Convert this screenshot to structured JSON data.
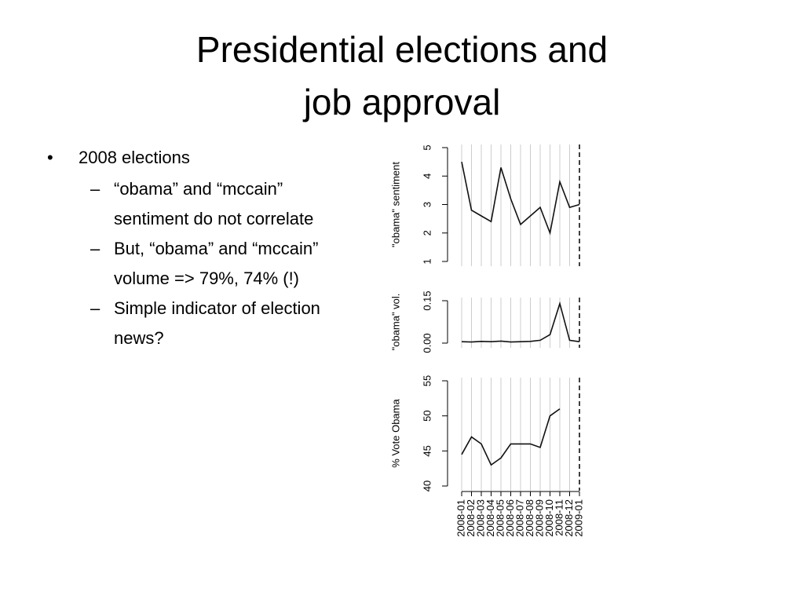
{
  "slide": {
    "title": [
      "Presidential elections and",
      "job approval"
    ],
    "bullets": [
      {
        "level": 1,
        "text": "2008 elections"
      },
      {
        "level": 2,
        "lines": [
          "“obama” and “mccain”",
          "sentiment do not correlate"
        ]
      },
      {
        "level": 2,
        "lines": [
          "But, “obama” and “mccain”",
          "volume => 79%, 74% (!)"
        ]
      },
      {
        "level": 2,
        "lines": [
          "Simple indicator of election",
          "news?"
        ]
      }
    ]
  },
  "chart_data": [
    {
      "type": "line",
      "y_label": "\"obama\" sentiment",
      "color": "#111111",
      "grid": true,
      "vline": "2009-01",
      "categories": [
        "2008-01",
        "2008-02",
        "2008-03",
        "2008-04",
        "2008-05",
        "2008-06",
        "2008-07",
        "2008-08",
        "2008-09",
        "2008-10",
        "2008-11",
        "2008-12",
        "2009-01"
      ],
      "values": [
        4.5,
        2.8,
        2.6,
        2.4,
        4.3,
        3.2,
        2.3,
        2.6,
        2.9,
        2.0,
        3.8,
        2.9,
        3.0
      ],
      "ylim": [
        1,
        5
      ],
      "yticks": [
        1,
        2,
        3,
        4,
        5
      ]
    },
    {
      "type": "line",
      "y_label": "\"obama\" vol.",
      "color": "#111111",
      "grid": true,
      "vline": "2009-01",
      "categories": [
        "2008-01",
        "2008-02",
        "2008-03",
        "2008-04",
        "2008-05",
        "2008-06",
        "2008-07",
        "2008-08",
        "2008-09",
        "2008-10",
        "2008-11",
        "2008-12",
        "2009-01"
      ],
      "values": [
        0.005,
        0.004,
        0.006,
        0.005,
        0.007,
        0.004,
        0.005,
        0.006,
        0.01,
        0.03,
        0.14,
        0.01,
        0.005
      ],
      "ylim": [
        0,
        0.15
      ],
      "yticks": [
        {
          "value": 0,
          "label": "0.00"
        },
        0.15
      ]
    },
    {
      "type": "line",
      "y_label": "% Vote Obama",
      "color": "#111111",
      "grid": true,
      "vline": "2009-01",
      "show_x_labels": true,
      "categories": [
        "2008-01",
        "2008-02",
        "2008-03",
        "2008-04",
        "2008-05",
        "2008-06",
        "2008-07",
        "2008-08",
        "2008-09",
        "2008-10",
        "2008-11",
        "2008-12",
        "2009-01"
      ],
      "values": [
        44.5,
        47,
        46,
        43,
        44,
        46,
        46,
        46,
        45.5,
        50,
        51,
        null,
        null
      ],
      "ylim": [
        40,
        55
      ],
      "yticks": [
        40,
        45,
        50,
        55
      ]
    }
  ]
}
